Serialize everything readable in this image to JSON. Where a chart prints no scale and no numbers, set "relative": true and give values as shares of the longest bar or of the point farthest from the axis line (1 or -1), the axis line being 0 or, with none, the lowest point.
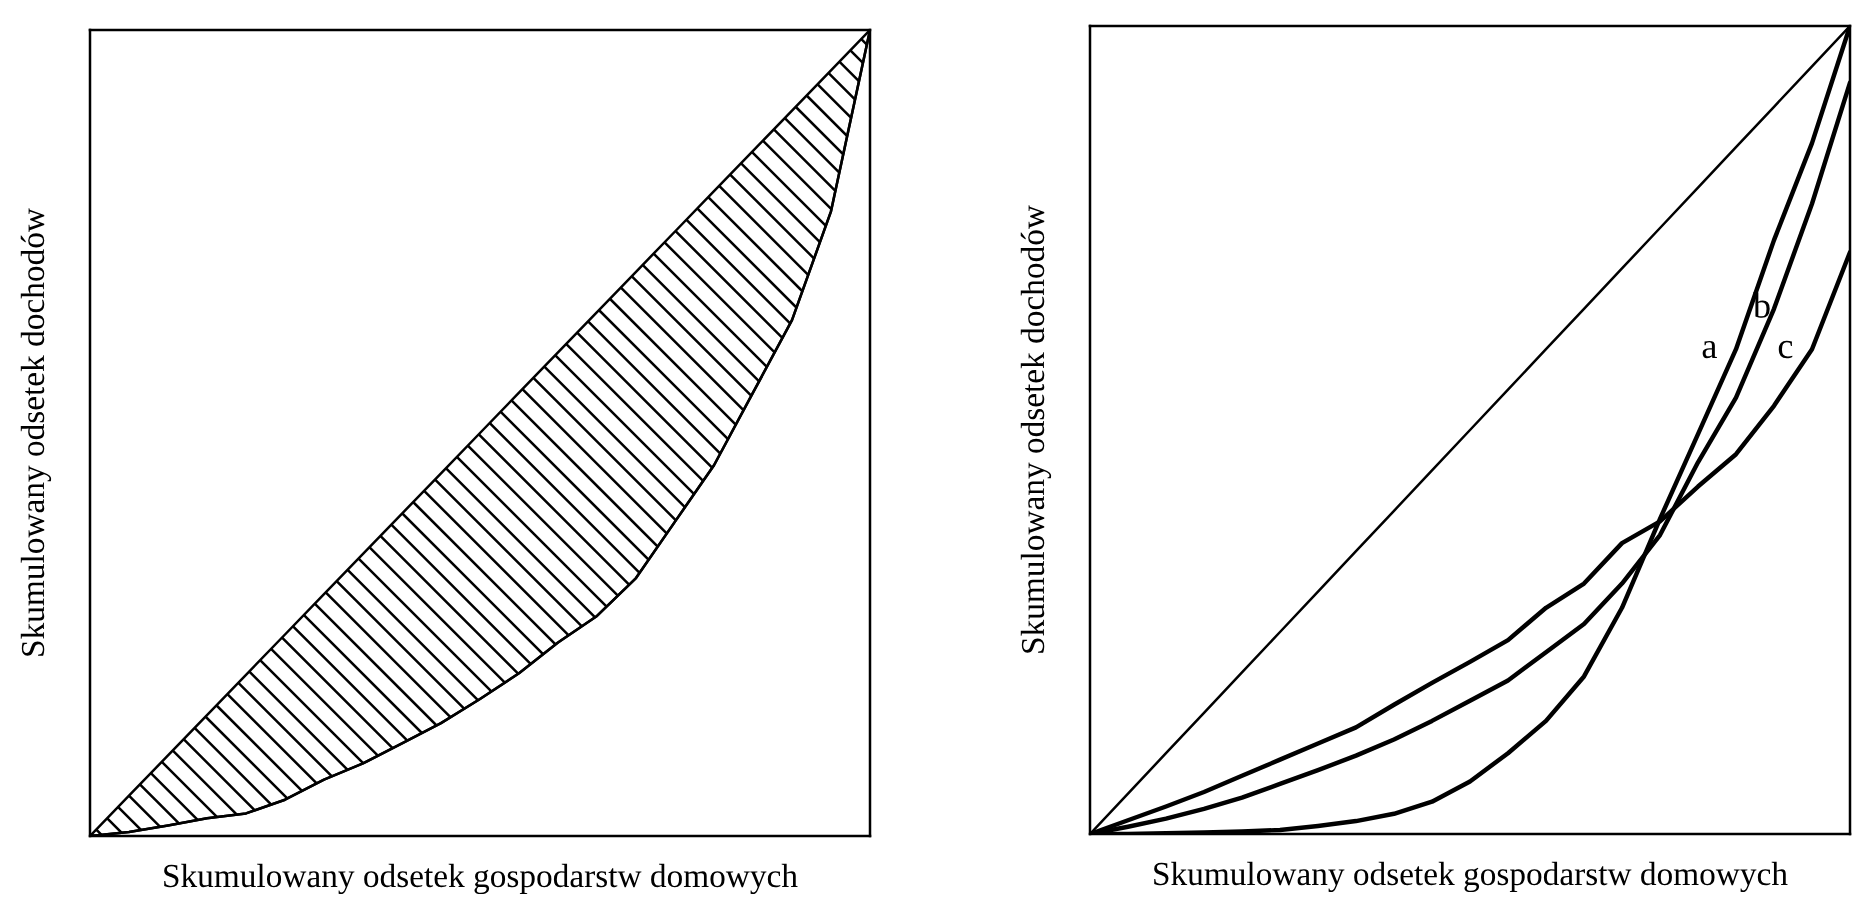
{
  "chart_data": [
    {
      "type": "line",
      "relative": true,
      "xlabel": "Skumulowany odsetek gospodarstw domowych",
      "ylabel": "Skumulowany odsetek dochodów",
      "tick_labels": false,
      "categories": [
        null,
        null,
        null,
        null,
        null,
        null,
        null,
        null,
        null,
        null,
        null,
        null,
        null,
        null,
        null,
        null,
        null,
        null,
        null,
        null,
        null
      ],
      "series": [
        {
          "color": "#000000",
          "values": [
            0,
            0.005,
            0.013,
            0.022,
            0.028,
            0.045,
            0.07,
            0.09,
            0.115,
            0.14,
            0.17,
            0.202,
            0.24,
            0.273,
            0.32,
            0.39,
            0.46,
            0.55,
            0.64,
            0.775,
            1
          ],
          "lower": [
            0,
            0.005,
            0.013,
            0.022,
            0.028,
            0.045,
            0.07,
            0.09,
            0.115,
            0.14,
            0.17,
            0.202,
            0.24,
            0.273,
            0.32,
            0.39,
            0.46,
            0.55,
            0.64,
            0.775,
            1
          ],
          "upper": [
            0,
            0.05,
            0.1,
            0.15,
            0.2,
            0.25,
            0.3,
            0.35,
            0.4,
            0.45,
            0.5,
            0.55,
            0.6,
            0.65,
            0.7,
            0.75,
            0.8,
            0.85,
            0.9,
            0.95,
            1
          ]
        }
      ]
    },
    {
      "type": "line",
      "relative": true,
      "xlabel": "Skumulowany odsetek gospodarstw domowych",
      "ylabel": "Skumulowany odsetek dochodów",
      "tick_labels": false,
      "categories": [
        null,
        null,
        null,
        null,
        null,
        null,
        null,
        null,
        null,
        null,
        null,
        null,
        null,
        null,
        null,
        null,
        null,
        null,
        null,
        null,
        null
      ],
      "series": [
        {
          "color": "#000000",
          "values": [
            0,
            0.05,
            0.1,
            0.15,
            0.2,
            0.25,
            0.3,
            0.35,
            0.4,
            0.45,
            0.5,
            0.55,
            0.6,
            0.65,
            0.7,
            0.75,
            0.8,
            0.85,
            0.9,
            0.95,
            1
          ]
        },
        {
          "name": "a",
          "color": "#000000",
          "values": [
            0,
            0,
            0.001,
            0.002,
            0.003,
            0.005,
            0.01,
            0.016,
            0.025,
            0.04,
            0.065,
            0.1,
            0.14,
            0.195,
            0.28,
            0.39,
            0.495,
            0.6,
            0.735,
            0.855,
            1
          ]
        },
        {
          "name": "b",
          "color": "#000000",
          "values": [
            0,
            0.009,
            0.019,
            0.031,
            0.045,
            0.062,
            0.079,
            0.097,
            0.117,
            0.14,
            0.165,
            0.19,
            0.225,
            0.26,
            0.31,
            0.37,
            0.46,
            0.54,
            0.65,
            0.78,
            0.93
          ]
        },
        {
          "name": "c",
          "color": "#000000",
          "values": [
            0,
            0.017,
            0.034,
            0.052,
            0.072,
            0.092,
            0.112,
            0.132,
            0.16,
            0.187,
            0.213,
            0.24,
            0.28,
            0.31,
            0.36,
            0.387,
            0.43,
            0.47,
            0.53,
            0.6,
            0.72
          ]
        }
      ]
    }
  ]
}
